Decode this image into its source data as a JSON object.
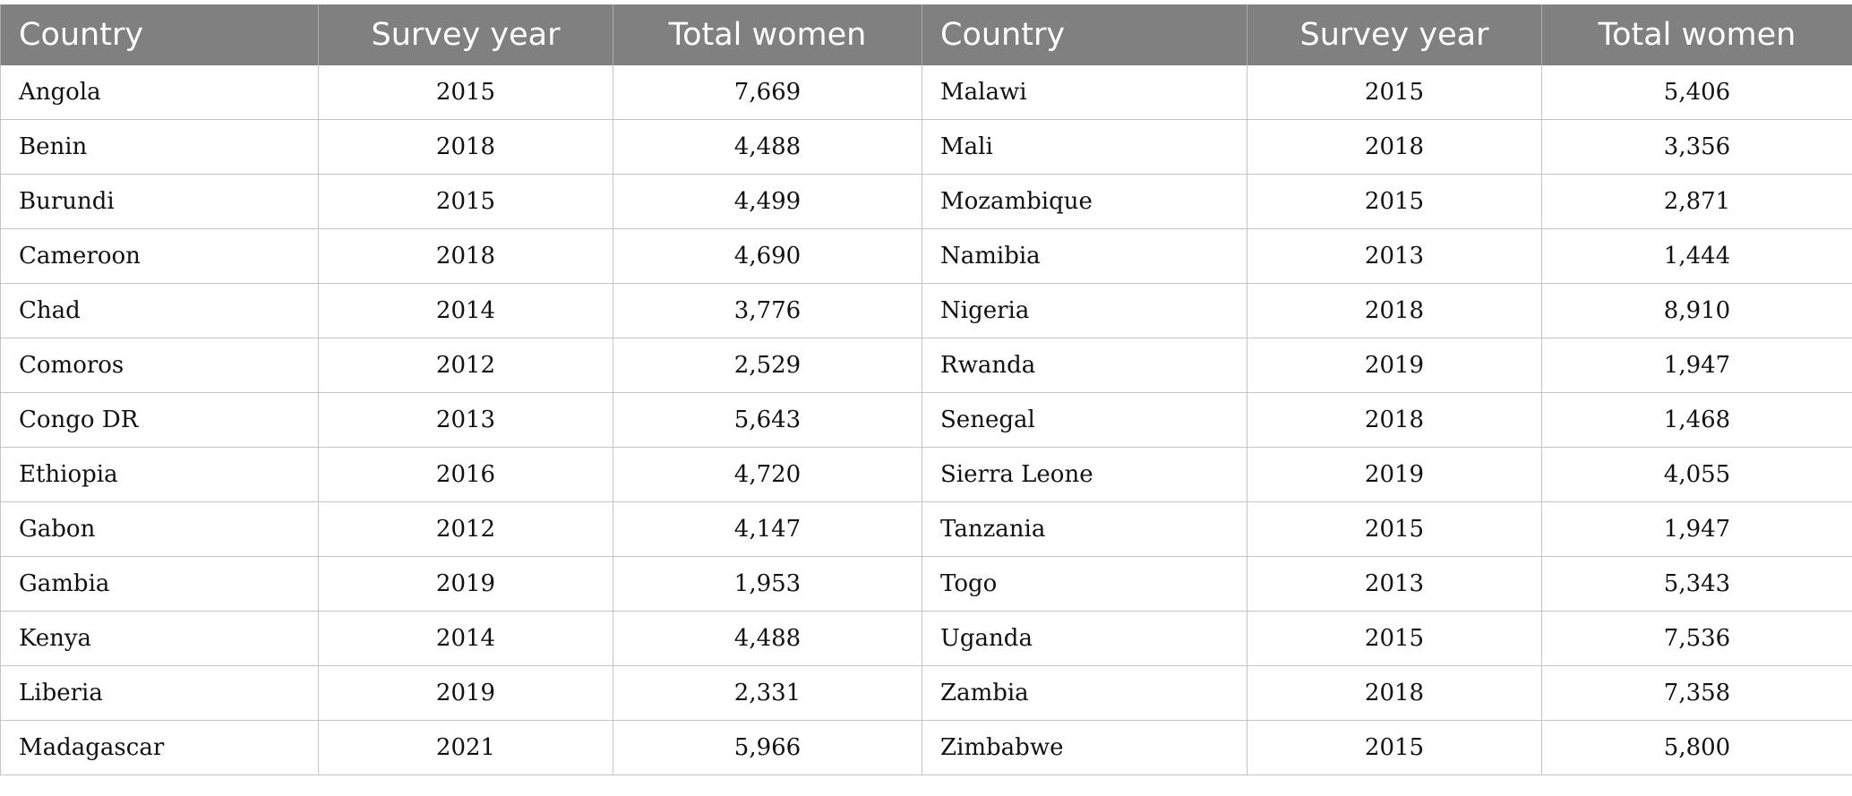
{
  "table": {
    "headers": [
      "Country",
      "Survey year",
      "Total women",
      "Country",
      "Survey year",
      "Total women"
    ],
    "rows": [
      [
        "Angola",
        "2015",
        "7,669",
        "Malawi",
        "2015",
        "5,406"
      ],
      [
        "Benin",
        "2018",
        "4,488",
        "Mali",
        "2018",
        "3,356"
      ],
      [
        "Burundi",
        "2015",
        "4,499",
        "Mozambique",
        "2015",
        "2,871"
      ],
      [
        "Cameroon",
        "2018",
        "4,690",
        "Namibia",
        "2013",
        "1,444"
      ],
      [
        "Chad",
        "2014",
        "3,776",
        "Nigeria",
        "2018",
        "8,910"
      ],
      [
        "Comoros",
        "2012",
        "2,529",
        "Rwanda",
        "2019",
        "1,947"
      ],
      [
        "Congo DR",
        "2013",
        "5,643",
        "Senegal",
        "2018",
        "1,468"
      ],
      [
        "Ethiopia",
        "2016",
        "4,720",
        "Sierra Leone",
        "2019",
        "4,055"
      ],
      [
        "Gabon",
        "2012",
        "4,147",
        "Tanzania",
        "2015",
        "1,947"
      ],
      [
        "Gambia",
        "2019",
        "1,953",
        "Togo",
        "2013",
        "5,343"
      ],
      [
        "Kenya",
        "2014",
        "4,488",
        "Uganda",
        "2015",
        "7,536"
      ],
      [
        "Liberia",
        "2019",
        "2,331",
        "Zambia",
        "2018",
        "7,358"
      ],
      [
        "Madagascar",
        "2021",
        "5,966",
        "Zimbabwe",
        "2015",
        "5,800"
      ]
    ]
  }
}
